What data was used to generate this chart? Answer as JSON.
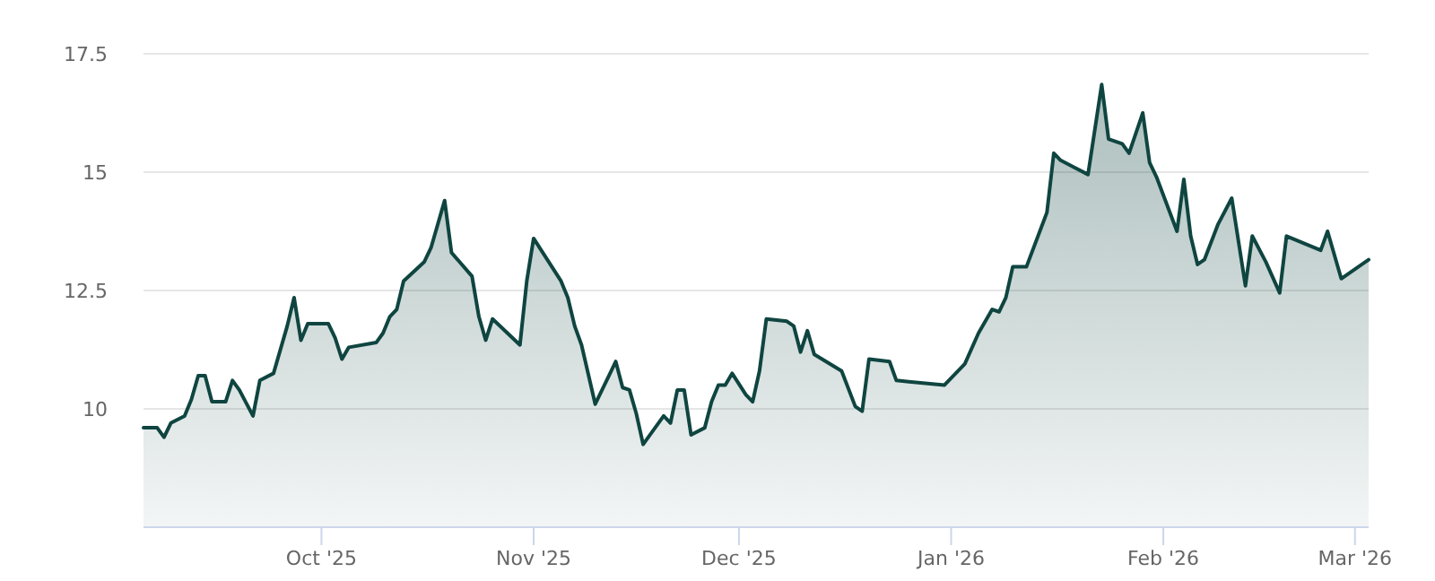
{
  "chart_data": {
    "type": "area",
    "x": [
      "2025-09-05",
      "2025-09-07",
      "2025-09-08",
      "2025-09-09",
      "2025-09-11",
      "2025-09-12",
      "2025-09-13",
      "2025-09-14",
      "2025-09-15",
      "2025-09-17",
      "2025-09-18",
      "2025-09-19",
      "2025-09-21",
      "2025-09-22",
      "2025-09-24",
      "2025-09-26",
      "2025-09-27",
      "2025-09-28",
      "2025-09-29",
      "2025-10-02",
      "2025-10-03",
      "2025-10-04",
      "2025-10-05",
      "2025-10-09",
      "2025-10-10",
      "2025-10-11",
      "2025-10-12",
      "2025-10-13",
      "2025-10-16",
      "2025-10-17",
      "2025-10-19",
      "2025-10-20",
      "2025-10-23",
      "2025-10-24",
      "2025-10-25",
      "2025-10-26",
      "2025-10-30",
      "2025-10-31",
      "2025-11-01",
      "2025-11-03",
      "2025-11-05",
      "2025-11-06",
      "2025-11-07",
      "2025-11-08",
      "2025-11-10",
      "2025-11-12",
      "2025-11-13",
      "2025-11-14",
      "2025-11-15",
      "2025-11-16",
      "2025-11-17",
      "2025-11-20",
      "2025-11-21",
      "2025-11-22",
      "2025-11-23",
      "2025-11-24",
      "2025-11-26",
      "2025-11-27",
      "2025-11-28",
      "2025-11-29",
      "2025-11-30",
      "2025-12-02",
      "2025-12-03",
      "2025-12-04",
      "2025-12-05",
      "2025-12-08",
      "2025-12-09",
      "2025-12-10",
      "2025-12-11",
      "2025-12-12",
      "2025-12-16",
      "2025-12-18",
      "2025-12-19",
      "2025-12-20",
      "2025-12-23",
      "2025-12-24",
      "2025-12-31",
      "2026-01-03",
      "2026-01-05",
      "2026-01-07",
      "2026-01-08",
      "2026-01-09",
      "2026-01-10",
      "2026-01-12",
      "2026-01-15",
      "2026-01-16",
      "2026-01-17",
      "2026-01-19",
      "2026-01-21",
      "2026-01-23",
      "2026-01-24",
      "2026-01-26",
      "2026-01-27",
      "2026-01-29",
      "2026-01-30",
      "2026-01-31",
      "2026-02-03",
      "2026-02-04",
      "2026-02-05",
      "2026-02-06",
      "2026-02-07",
      "2026-02-09",
      "2026-02-11",
      "2026-02-13",
      "2026-02-14",
      "2026-02-16",
      "2026-02-18",
      "2026-02-19",
      "2026-02-24",
      "2026-02-25",
      "2026-02-27",
      "2026-03-03"
    ],
    "series": [
      {
        "color": "#0f4540",
        "values": [
          9.6,
          9.6,
          9.4,
          9.7,
          9.85,
          10.2,
          10.7,
          10.7,
          10.15,
          10.15,
          10.6,
          10.4,
          9.85,
          10.6,
          10.75,
          11.75,
          12.35,
          11.45,
          11.8,
          11.8,
          11.5,
          11.05,
          11.3,
          11.4,
          11.6,
          11.95,
          12.1,
          12.7,
          13.1,
          13.4,
          14.4,
          13.3,
          12.8,
          11.95,
          11.45,
          11.9,
          11.35,
          12.7,
          13.6,
          13.15,
          12.7,
          12.35,
          11.75,
          11.35,
          10.1,
          10.7,
          11.0,
          10.45,
          10.4,
          9.9,
          9.25,
          9.85,
          9.7,
          10.4,
          10.4,
          9.45,
          9.6,
          10.15,
          10.5,
          10.5,
          10.75,
          10.3,
          10.15,
          10.8,
          11.9,
          11.85,
          11.75,
          11.2,
          11.65,
          11.15,
          10.8,
          10.05,
          9.95,
          11.05,
          11.0,
          10.6,
          10.5,
          10.95,
          11.6,
          12.1,
          12.05,
          12.35,
          13.0,
          13.0,
          14.15,
          15.4,
          15.25,
          15.1,
          14.95,
          16.85,
          15.7,
          15.6,
          15.4,
          16.25,
          15.2,
          14.9,
          13.75,
          14.85,
          13.65,
          13.05,
          13.15,
          13.9,
          14.45,
          12.6,
          13.65,
          13.1,
          12.45,
          13.65,
          13.35,
          13.75,
          12.75,
          13.15
        ]
      }
    ],
    "xlim": [
      "2025-09-05",
      "2026-03-03"
    ],
    "xticks": [
      {
        "value": "2025-10-01",
        "label": "Oct '25"
      },
      {
        "value": "2025-11-01",
        "label": "Nov '25"
      },
      {
        "value": "2025-12-01",
        "label": "Dec '25"
      },
      {
        "value": "2026-01-01",
        "label": "Jan '26"
      },
      {
        "value": "2026-02-01",
        "label": "Feb '26"
      },
      {
        "value": "2026-03-01",
        "label": "Mar '26"
      }
    ],
    "ylim": [
      7.5,
      17.5
    ],
    "yticks": [
      10,
      12.5,
      15,
      17.5
    ],
    "grid": "y"
  }
}
